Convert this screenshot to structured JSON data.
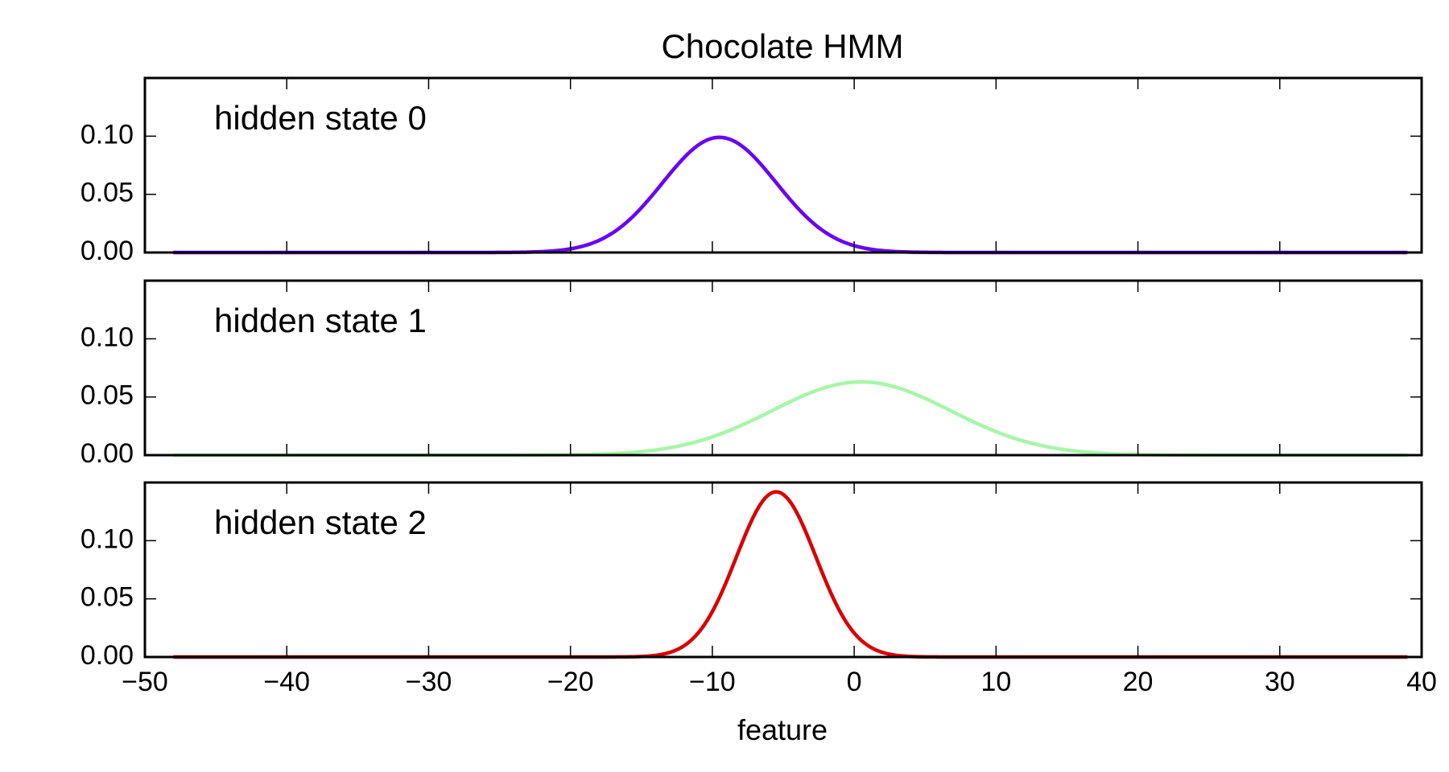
{
  "chart_data": {
    "type": "line",
    "title": "Chocolate HMM",
    "xlabel": "feature",
    "xlim": [
      -50,
      40
    ],
    "xticks": [
      -50,
      -40,
      -30,
      -20,
      -10,
      0,
      10,
      20,
      30,
      40
    ],
    "xtick_labels": [
      "−50",
      "−40",
      "−30",
      "−20",
      "−10",
      "0",
      "10",
      "20",
      "30",
      "40"
    ],
    "ylim": [
      0,
      0.15
    ],
    "yticks": [
      0.0,
      0.05,
      0.1
    ],
    "ytick_labels": [
      "0.00",
      "0.05",
      "0.10"
    ],
    "grid": false,
    "x_range": [
      -48,
      39
    ],
    "panels": [
      {
        "annotation": "hidden state 0",
        "distribution": "gaussian",
        "mean": -9.5,
        "std": 4.0,
        "peak": 0.099,
        "color": "#6a00f4"
      },
      {
        "annotation": "hidden state 1",
        "distribution": "gaussian",
        "mean": 0.5,
        "std": 6.3,
        "peak": 0.063,
        "color": "#a8f5a8"
      },
      {
        "annotation": "hidden state 2",
        "distribution": "gaussian",
        "mean": -5.5,
        "std": 2.8,
        "peak": 0.142,
        "color": "#d90000"
      }
    ]
  }
}
